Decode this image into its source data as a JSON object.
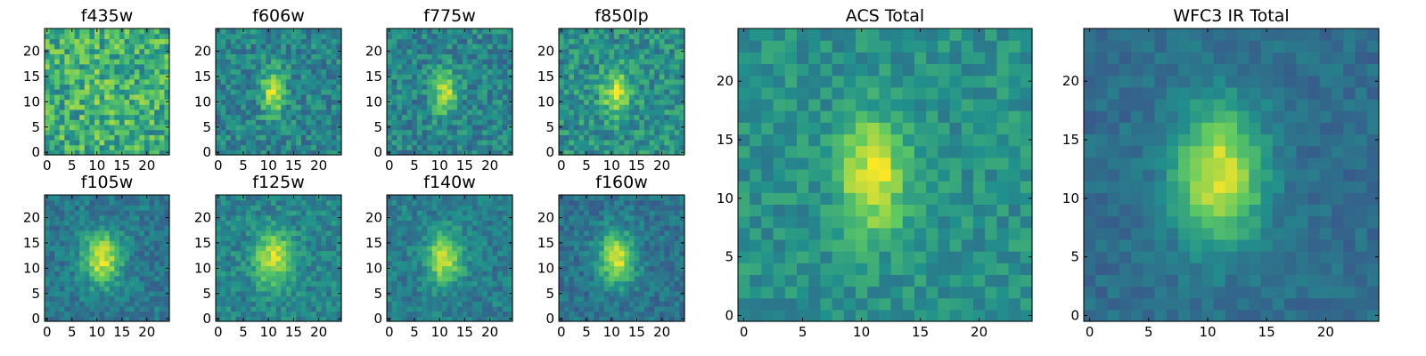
{
  "chart_data": {
    "type": "heatmap",
    "colormap": [
      "#440154",
      "#3b528b",
      "#21918c",
      "#5ec962",
      "#fde725"
    ],
    "panels": [
      {
        "title": "f435w",
        "grid": 25,
        "xlim": [
          0,
          24
        ],
        "ylim": [
          0,
          24
        ],
        "xticks": [
          0,
          5,
          10,
          15,
          20
        ],
        "yticks": [
          0,
          5,
          10,
          15,
          20
        ],
        "source": {
          "cx": 12,
          "cy": 12,
          "sx": 4,
          "sy": 6,
          "amp": 0.05,
          "noise": 0.45,
          "base": 0.62,
          "seed": 11
        }
      },
      {
        "title": "f606w",
        "grid": 25,
        "xlim": [
          0,
          24
        ],
        "ylim": [
          0,
          24
        ],
        "xticks": [
          0,
          5,
          10,
          15,
          20
        ],
        "yticks": [
          0,
          5,
          10,
          15,
          20
        ],
        "source": {
          "cx": 11,
          "cy": 12,
          "sx": 1.6,
          "sy": 3.2,
          "amp": 0.5,
          "noise": 0.3,
          "base": 0.45,
          "seed": 23
        }
      },
      {
        "title": "f775w",
        "grid": 25,
        "xlim": [
          0,
          24
        ],
        "ylim": [
          0,
          24
        ],
        "xticks": [
          0,
          5,
          10,
          15,
          20
        ],
        "yticks": [
          0,
          5,
          10,
          15,
          20
        ],
        "source": {
          "cx": 11,
          "cy": 12,
          "sx": 1.7,
          "sy": 3.0,
          "amp": 0.45,
          "noise": 0.3,
          "base": 0.45,
          "seed": 37
        }
      },
      {
        "title": "f850lp",
        "grid": 25,
        "xlim": [
          0,
          24
        ],
        "ylim": [
          0,
          24
        ],
        "xticks": [
          0,
          5,
          10,
          15,
          20
        ],
        "yticks": [
          0,
          5,
          10,
          15,
          20
        ],
        "source": {
          "cx": 11,
          "cy": 12,
          "sx": 2.0,
          "sy": 3.0,
          "amp": 0.42,
          "noise": 0.32,
          "base": 0.5,
          "seed": 41
        }
      },
      {
        "title": "f105w",
        "grid": 25,
        "xlim": [
          0,
          24
        ],
        "ylim": [
          0,
          24
        ],
        "xticks": [
          0,
          5,
          10,
          15,
          20
        ],
        "yticks": [
          0,
          5,
          10,
          15,
          20
        ],
        "source": {
          "cx": 11,
          "cy": 12,
          "sx": 2.6,
          "sy": 3.6,
          "amp": 0.55,
          "noise": 0.22,
          "base": 0.4,
          "seed": 53
        }
      },
      {
        "title": "f125w",
        "grid": 25,
        "xlim": [
          0,
          24
        ],
        "ylim": [
          0,
          24
        ],
        "xticks": [
          0,
          5,
          10,
          15,
          20
        ],
        "yticks": [
          0,
          5,
          10,
          15,
          20
        ],
        "source": {
          "cx": 11,
          "cy": 12,
          "sx": 2.6,
          "sy": 3.6,
          "amp": 0.5,
          "noise": 0.24,
          "base": 0.45,
          "seed": 61
        }
      },
      {
        "title": "f140w",
        "grid": 25,
        "xlim": [
          0,
          24
        ],
        "ylim": [
          0,
          24
        ],
        "xticks": [
          0,
          5,
          10,
          15,
          20
        ],
        "yticks": [
          0,
          5,
          10,
          15,
          20
        ],
        "source": {
          "cx": 11,
          "cy": 12,
          "sx": 2.4,
          "sy": 3.4,
          "amp": 0.52,
          "noise": 0.22,
          "base": 0.42,
          "seed": 73
        }
      },
      {
        "title": "f160w",
        "grid": 25,
        "xlim": [
          0,
          24
        ],
        "ylim": [
          0,
          24
        ],
        "xticks": [
          0,
          5,
          10,
          15,
          20
        ],
        "yticks": [
          0,
          5,
          10,
          15,
          20
        ],
        "source": {
          "cx": 11,
          "cy": 12,
          "sx": 2.5,
          "sy": 3.6,
          "amp": 0.55,
          "noise": 0.22,
          "base": 0.38,
          "seed": 89
        }
      },
      {
        "title": "ACS Total",
        "grid": 25,
        "xlim": [
          0,
          24
        ],
        "ylim": [
          0,
          24
        ],
        "xticks": [
          0,
          5,
          10,
          15,
          20
        ],
        "yticks": [
          0,
          5,
          10,
          15,
          20
        ],
        "source": {
          "cx": 11,
          "cy": 12,
          "sx": 2.0,
          "sy": 3.4,
          "amp": 0.48,
          "noise": 0.22,
          "base": 0.5,
          "seed": 97
        }
      },
      {
        "title": "WFC3 IR Total",
        "grid": 25,
        "xlim": [
          0,
          24
        ],
        "ylim": [
          0,
          24
        ],
        "xticks": [
          0,
          5,
          10,
          15,
          20
        ],
        "yticks": [
          0,
          5,
          10,
          15,
          20
        ],
        "source": {
          "cx": 11,
          "cy": 12,
          "sx": 2.6,
          "sy": 4.0,
          "amp": 0.6,
          "noise": 0.14,
          "base": 0.36,
          "seed": 101
        }
      }
    ]
  }
}
